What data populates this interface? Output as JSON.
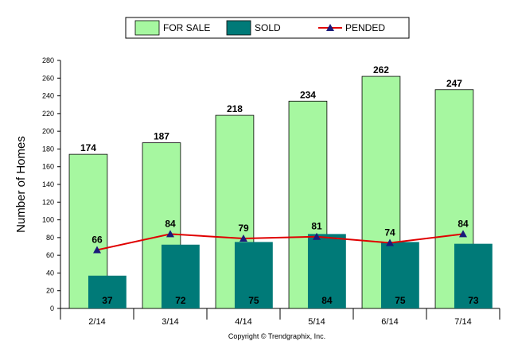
{
  "chart_data": {
    "type": "bar",
    "categories": [
      "2/14",
      "3/14",
      "4/14",
      "5/14",
      "6/14",
      "7/14"
    ],
    "series": [
      {
        "name": "FOR SALE",
        "type": "bar",
        "color": "#a6f7a0",
        "values": [
          174,
          187,
          218,
          234,
          262,
          247
        ]
      },
      {
        "name": "SOLD",
        "type": "bar",
        "color": "#007a78",
        "values": [
          37,
          72,
          75,
          84,
          75,
          73
        ]
      },
      {
        "name": "PENDED",
        "type": "line",
        "color": "#e00000",
        "marker_color": "#1a1a7a",
        "values": [
          66,
          84,
          79,
          81,
          74,
          84
        ]
      }
    ],
    "ylabel": "Number of Homes",
    "xlabel": "",
    "ylim": [
      0,
      280
    ],
    "yticks": [
      0,
      20,
      40,
      60,
      80,
      100,
      120,
      140,
      160,
      180,
      200,
      220,
      240,
      260,
      280
    ],
    "legend_position": "top-center",
    "grid": false
  },
  "footer": {
    "copyright": "Copyright © Trendgraphix, Inc."
  }
}
